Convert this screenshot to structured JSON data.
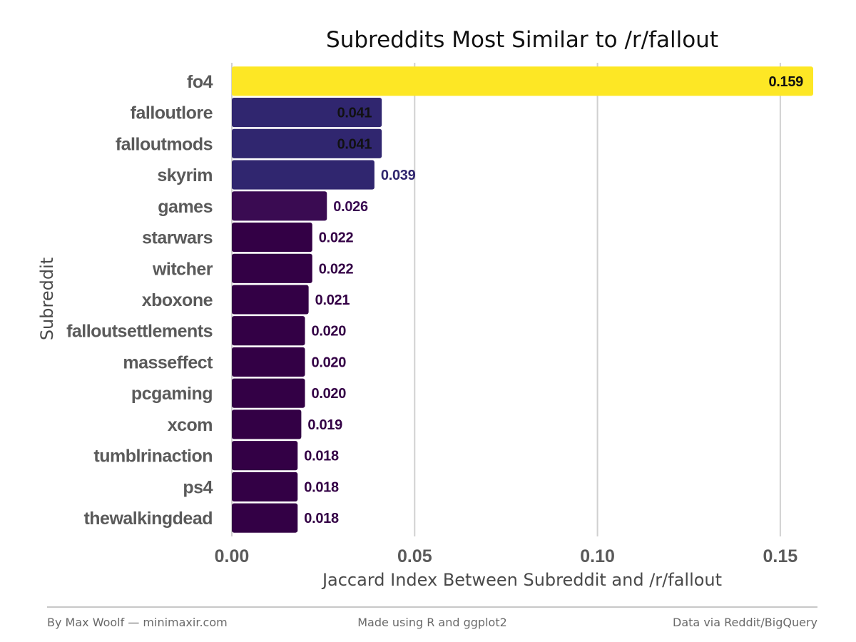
{
  "chart_data": {
    "type": "bar",
    "orientation": "horizontal",
    "title": "Subreddits Most Similar to /r/fallout",
    "xlabel": "Jaccard Index Between Subreddit and /r/fallout",
    "ylabel": "Subreddit",
    "xlim": [
      0,
      0.159
    ],
    "xticks": [
      0,
      0.05,
      0.1,
      0.15
    ],
    "xtick_labels": [
      "0.00",
      "0.05",
      "0.10",
      "0.15"
    ],
    "grid": "vertical major lines",
    "legend": "none",
    "color_scale": "viridis by value",
    "categories": [
      "fo4",
      "falloutlore",
      "falloutmods",
      "skyrim",
      "games",
      "starwars",
      "witcher",
      "xboxone",
      "falloutsettlements",
      "masseffect",
      "pcgaming",
      "xcom",
      "tumblrinaction",
      "ps4",
      "thewalkingdead"
    ],
    "values": [
      0.159,
      0.041,
      0.041,
      0.039,
      0.026,
      0.022,
      0.022,
      0.021,
      0.02,
      0.02,
      0.02,
      0.019,
      0.018,
      0.018,
      0.018
    ],
    "value_labels": [
      "0.159",
      "0.041",
      "0.041",
      "0.039",
      "0.026",
      "0.022",
      "0.022",
      "0.021",
      "0.020",
      "0.020",
      "0.020",
      "0.019",
      "0.018",
      "0.018",
      "0.018"
    ],
    "colors": [
      "#fde725",
      "#30266f",
      "#30266f",
      "#30266f",
      "#3a0b52",
      "#330045",
      "#330045",
      "#330045",
      "#330045",
      "#330045",
      "#330045",
      "#330045",
      "#330045",
      "#330045",
      "#330045"
    ],
    "inside_label_color": "#111111"
  },
  "footer": {
    "left": "By Max Woolf — minimaxir.com",
    "center": "Made using R and ggplot2",
    "right": "Data via Reddit/BigQuery"
  }
}
